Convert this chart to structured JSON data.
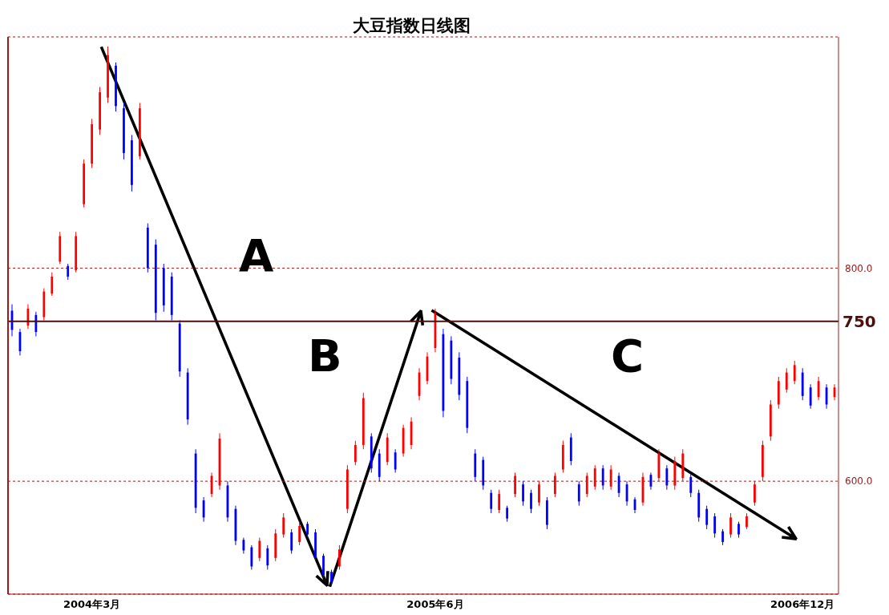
{
  "chart_data": {
    "type": "candlestick",
    "title": "大豆指数日线图",
    "categories": [
      null,
      null,
      null,
      null,
      null,
      null,
      null,
      null,
      null,
      null,
      "2004年3月",
      null,
      null,
      null,
      null,
      null,
      null,
      null,
      null,
      null,
      null,
      null,
      null,
      null,
      null,
      null,
      null,
      null,
      null,
      null,
      null,
      null,
      null,
      null,
      null,
      null,
      null,
      null,
      null,
      null,
      null,
      null,
      null,
      null,
      null,
      null,
      null,
      null,
      null,
      null,
      null,
      null,
      null,
      "2005年6月",
      null,
      null,
      null,
      null,
      null,
      null,
      null,
      null,
      null,
      null,
      null,
      null,
      null,
      null,
      null,
      null,
      null,
      null,
      null,
      null,
      null,
      null,
      null,
      null,
      null,
      null,
      null,
      null,
      null,
      null,
      null,
      null,
      null,
      null,
      null,
      null,
      null,
      null,
      null,
      null,
      null,
      null,
      null,
      null,
      null,
      "2006年12月",
      null,
      null,
      null,
      null
    ],
    "ohlc": [
      [
        760,
        766,
        736,
        742
      ],
      [
        740,
        743,
        718,
        722
      ],
      [
        746,
        766,
        743,
        762
      ],
      [
        756,
        759,
        736,
        740
      ],
      [
        754,
        781,
        751,
        778
      ],
      [
        776,
        796,
        774,
        792
      ],
      [
        806,
        834,
        804,
        830
      ],
      [
        802,
        804,
        789,
        792
      ],
      [
        798,
        834,
        796,
        830
      ],
      [
        860,
        902,
        857,
        898
      ],
      [
        898,
        940,
        894,
        935
      ],
      [
        930,
        970,
        925,
        965
      ],
      [
        960,
        1008,
        955,
        1000
      ],
      [
        990,
        993,
        947,
        952
      ],
      [
        950,
        955,
        902,
        908
      ],
      [
        920,
        925,
        872,
        878
      ],
      [
        905,
        955,
        902,
        950
      ],
      [
        838,
        842,
        796,
        800
      ],
      [
        822,
        827,
        751,
        758
      ],
      [
        800,
        804,
        759,
        765
      ],
      [
        792,
        796,
        751,
        756
      ],
      [
        748,
        751,
        698,
        703
      ],
      [
        702,
        706,
        653,
        658
      ],
      [
        626,
        630,
        570,
        575
      ],
      [
        582,
        585,
        562,
        566
      ],
      [
        588,
        608,
        585,
        605
      ],
      [
        596,
        645,
        592,
        640
      ],
      [
        596,
        600,
        562,
        566
      ],
      [
        574,
        577,
        540,
        544
      ],
      [
        545,
        547,
        532,
        535
      ],
      [
        538,
        540,
        517,
        520
      ],
      [
        528,
        547,
        525,
        544
      ],
      [
        537,
        540,
        517,
        521
      ],
      [
        528,
        555,
        525,
        551
      ],
      [
        550,
        570,
        547,
        566
      ],
      [
        552,
        555,
        532,
        535
      ],
      [
        543,
        562,
        540,
        558
      ],
      [
        560,
        562,
        547,
        550
      ],
      [
        552,
        555,
        525,
        528
      ],
      [
        530,
        532,
        509,
        512
      ],
      [
        515,
        517,
        502,
        505
      ],
      [
        520,
        540,
        517,
        536
      ],
      [
        574,
        615,
        570,
        611
      ],
      [
        618,
        638,
        615,
        634
      ],
      [
        634,
        683,
        630,
        678
      ],
      [
        642,
        645,
        608,
        612
      ],
      [
        626,
        630,
        600,
        604
      ],
      [
        618,
        645,
        615,
        641
      ],
      [
        627,
        630,
        608,
        611
      ],
      [
        626,
        653,
        623,
        650
      ],
      [
        634,
        660,
        630,
        656
      ],
      [
        680,
        706,
        676,
        702
      ],
      [
        694,
        721,
        691,
        717
      ],
      [
        725,
        762,
        721,
        758
      ],
      [
        738,
        743,
        660,
        666
      ],
      [
        732,
        736,
        691,
        696
      ],
      [
        716,
        721,
        676,
        681
      ],
      [
        694,
        698,
        645,
        650
      ],
      [
        626,
        630,
        600,
        604
      ],
      [
        620,
        623,
        592,
        596
      ],
      [
        589,
        592,
        570,
        574
      ],
      [
        573,
        592,
        570,
        588
      ],
      [
        575,
        577,
        562,
        565
      ],
      [
        588,
        608,
        585,
        605
      ],
      [
        597,
        600,
        577,
        581
      ],
      [
        589,
        592,
        570,
        574
      ],
      [
        580,
        600,
        577,
        597
      ],
      [
        582,
        585,
        555,
        559
      ],
      [
        588,
        608,
        585,
        605
      ],
      [
        611,
        638,
        608,
        634
      ],
      [
        641,
        645,
        615,
        619
      ],
      [
        597,
        600,
        577,
        581
      ],
      [
        588,
        608,
        585,
        605
      ],
      [
        595,
        615,
        592,
        612
      ],
      [
        612,
        615,
        592,
        596
      ],
      [
        595,
        615,
        592,
        611
      ],
      [
        605,
        608,
        585,
        589
      ],
      [
        597,
        600,
        577,
        581
      ],
      [
        583,
        585,
        570,
        573
      ],
      [
        580,
        608,
        577,
        604
      ],
      [
        606,
        608,
        592,
        595
      ],
      [
        603,
        630,
        600,
        626
      ],
      [
        612,
        615,
        592,
        596
      ],
      [
        596,
        623,
        592,
        619
      ],
      [
        603,
        630,
        600,
        626
      ],
      [
        604,
        608,
        585,
        589
      ],
      [
        589,
        592,
        562,
        566
      ],
      [
        574,
        577,
        555,
        559
      ],
      [
        567,
        570,
        547,
        551
      ],
      [
        553,
        555,
        540,
        543
      ],
      [
        550,
        570,
        547,
        566
      ],
      [
        560,
        562,
        547,
        550
      ],
      [
        557,
        570,
        555,
        567
      ],
      [
        580,
        600,
        577,
        597
      ],
      [
        604,
        638,
        600,
        634
      ],
      [
        642,
        676,
        638,
        672
      ],
      [
        672,
        698,
        668,
        694
      ],
      [
        686,
        706,
        683,
        702
      ],
      [
        694,
        713,
        691,
        709
      ],
      [
        702,
        706,
        676,
        680
      ],
      [
        688,
        691,
        668,
        671
      ],
      [
        679,
        698,
        676,
        694
      ],
      [
        688,
        691,
        668,
        672
      ],
      [
        679,
        691,
        676,
        688
      ]
    ],
    "colors": [
      "#0000ff",
      "#0000ff",
      "#ff0000",
      "#0000ff",
      "#ff0000",
      "#ff0000",
      "#ff0000",
      "#0000ff",
      "#ff0000",
      "#ff0000",
      "#ff0000",
      "#ff0000",
      "#ff0000",
      "#0000ff",
      "#0000ff",
      "#0000ff",
      "#ff0000",
      "#0000ff",
      "#0000ff",
      "#0000ff",
      "#0000ff",
      "#0000ff",
      "#0000ff",
      "#0000ff",
      "#0000ff",
      "#ff0000",
      "#ff0000",
      "#0000ff",
      "#0000ff",
      "#0000ff",
      "#0000ff",
      "#ff0000",
      "#0000ff",
      "#ff0000",
      "#ff0000",
      "#0000ff",
      "#ff0000",
      "#0000ff",
      "#0000ff",
      "#0000ff",
      "#0000ff",
      "#ff0000",
      "#ff0000",
      "#ff0000",
      "#ff0000",
      "#0000ff",
      "#0000ff",
      "#ff0000",
      "#0000ff",
      "#ff0000",
      "#ff0000",
      "#ff0000",
      "#ff0000",
      "#ff0000",
      "#0000ff",
      "#0000ff",
      "#0000ff",
      "#0000ff",
      "#0000ff",
      "#0000ff",
      "#0000ff",
      "#ff0000",
      "#0000ff",
      "#ff0000",
      "#0000ff",
      "#0000ff",
      "#ff0000",
      "#0000ff",
      "#ff0000",
      "#ff0000",
      "#0000ff",
      "#0000ff",
      "#ff0000",
      "#ff0000",
      "#0000ff",
      "#ff0000",
      "#0000ff",
      "#0000ff",
      "#0000ff",
      "#ff0000",
      "#0000ff",
      "#ff0000",
      "#0000ff",
      "#ff0000",
      "#ff0000",
      "#0000ff",
      "#0000ff",
      "#0000ff",
      "#0000ff",
      "#0000ff",
      "#ff0000",
      "#0000ff",
      "#ff0000",
      "#ff0000",
      "#ff0000",
      "#ff0000",
      "#ff0000",
      "#ff0000",
      "#ff0000",
      "#0000ff",
      "#0000ff",
      "#ff0000",
      "#0000ff",
      "#ff0000"
    ],
    "ylim": [
      494,
      1017
    ],
    "yticks": [
      {
        "value": 600,
        "label": "600.0"
      },
      {
        "value": 800,
        "label": "800.0"
      }
    ],
    "grid": "y",
    "ref_lines": [
      {
        "axis": "y",
        "value": 750,
        "label": "750",
        "color": "#4a1010"
      }
    ],
    "annotations": [
      "A",
      "B",
      "C"
    ]
  }
}
